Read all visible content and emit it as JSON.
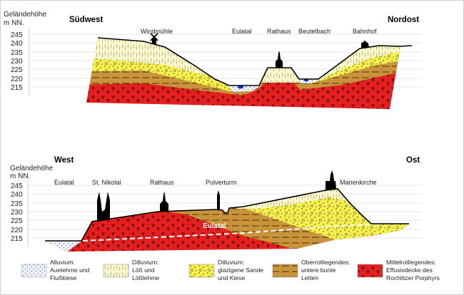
{
  "colors": {
    "alluvium": "#dfe3f5",
    "loess": "#fbf8cc",
    "sand": "#f7f04a",
    "letten": "#c99339",
    "porphyr": "#e3201f",
    "water": "#1030e0"
  },
  "top_profile": {
    "axis_title_1": "Geländehöhe",
    "axis_title_2": "m NN.",
    "ticks": [
      "245",
      "240",
      "235",
      "230",
      "225",
      "220",
      "215"
    ],
    "dir_left": "Südwest",
    "dir_right": "Nordost",
    "places": [
      "Windmühle",
      "Eulatal",
      "Rathaus",
      "Beutelbach",
      "Bahnhof"
    ]
  },
  "bottom_profile": {
    "axis_title_1": "Geländehöhe",
    "axis_title_2": "m NN.",
    "ticks": [
      "245",
      "240",
      "235",
      "230",
      "225",
      "220",
      "215"
    ],
    "dir_left": "West",
    "dir_right": "Ost",
    "places": [
      "Eulatal",
      "St. Nikolai",
      "Rathaus",
      "Pulverturm",
      "Marienkirche"
    ],
    "valley_label": "Eulatal"
  },
  "legend": [
    {
      "lines": [
        "Alluvium:",
        "Auelehme und",
        "Flußkiese"
      ]
    },
    {
      "lines": [
        "Dilluvium:",
        "Löß und",
        "Lößlehme"
      ]
    },
    {
      "lines": [
        "Dilluvium:",
        "glazigene Sande",
        "und Kiese"
      ]
    },
    {
      "lines": [
        "Oberrotliegendes:",
        "untere bunte",
        "Letten"
      ]
    },
    {
      "lines": [
        "Mittelrotliegendes:",
        "Effusivdecke des",
        "Rochlitzer Porphyrs"
      ]
    }
  ]
}
